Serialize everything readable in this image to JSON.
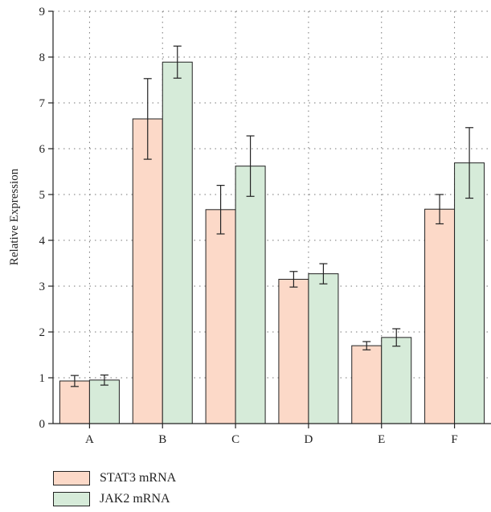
{
  "chart_data": {
    "type": "bar",
    "categories": [
      "A",
      "B",
      "C",
      "D",
      "E",
      "F"
    ],
    "series": [
      {
        "name": "STAT3 mRNA",
        "color": "#fcd9c8",
        "values": [
          0.93,
          6.65,
          4.67,
          3.15,
          1.7,
          4.68
        ],
        "errors": [
          0.12,
          0.88,
          0.53,
          0.17,
          0.09,
          0.32
        ]
      },
      {
        "name": "JAK2 mRNA",
        "color": "#d6ebd9",
        "values": [
          0.95,
          7.89,
          5.62,
          3.27,
          1.88,
          5.69
        ],
        "errors": [
          0.11,
          0.35,
          0.66,
          0.22,
          0.19,
          0.77
        ]
      }
    ],
    "ylabel": "Relative Expression",
    "xlabel": "",
    "ylim": [
      0,
      9
    ],
    "yticks": [
      "0",
      "1",
      "2",
      "3",
      "4",
      "5",
      "6",
      "7",
      "8",
      "9"
    ],
    "grid": true,
    "legend_position": "bottom-left"
  }
}
